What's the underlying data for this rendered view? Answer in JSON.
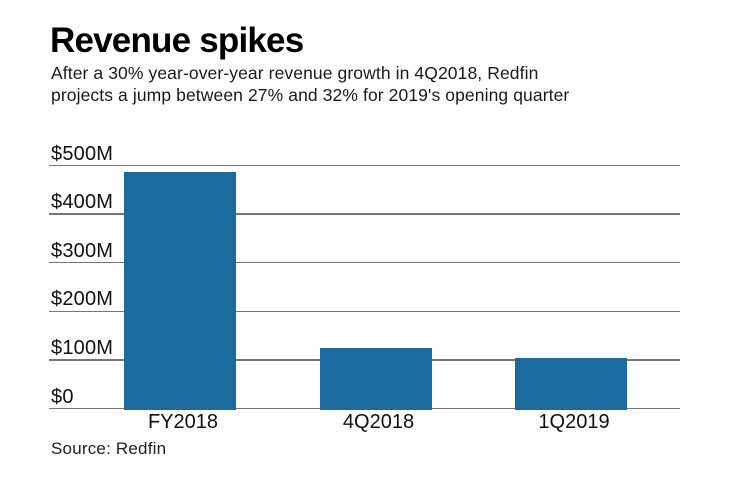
{
  "header": {
    "title": "Revenue spikes",
    "subtitle_lines": [
      "After a 30% year-over-year revenue growth in 4Q2018, Redfin",
      "projects a jump between 27% and 32% for 2019's opening quarter"
    ]
  },
  "chart_data": {
    "type": "bar",
    "title": "Revenue spikes",
    "categories": [
      "FY2018",
      "4Q2018",
      "1Q2019"
    ],
    "values": [
      487,
      124,
      104
    ],
    "value_unit": "$M",
    "ylim": [
      0,
      500
    ],
    "ytick_interval": 100,
    "ytick_labels": [
      "$0",
      "$100M",
      "$200M",
      "$300M",
      "$400M",
      "$500M"
    ],
    "grid": true,
    "legend": "none",
    "bar_color": "#1c6ba0",
    "gridline_color": "#767676"
  },
  "footer": {
    "source": "Source: Redfin"
  }
}
